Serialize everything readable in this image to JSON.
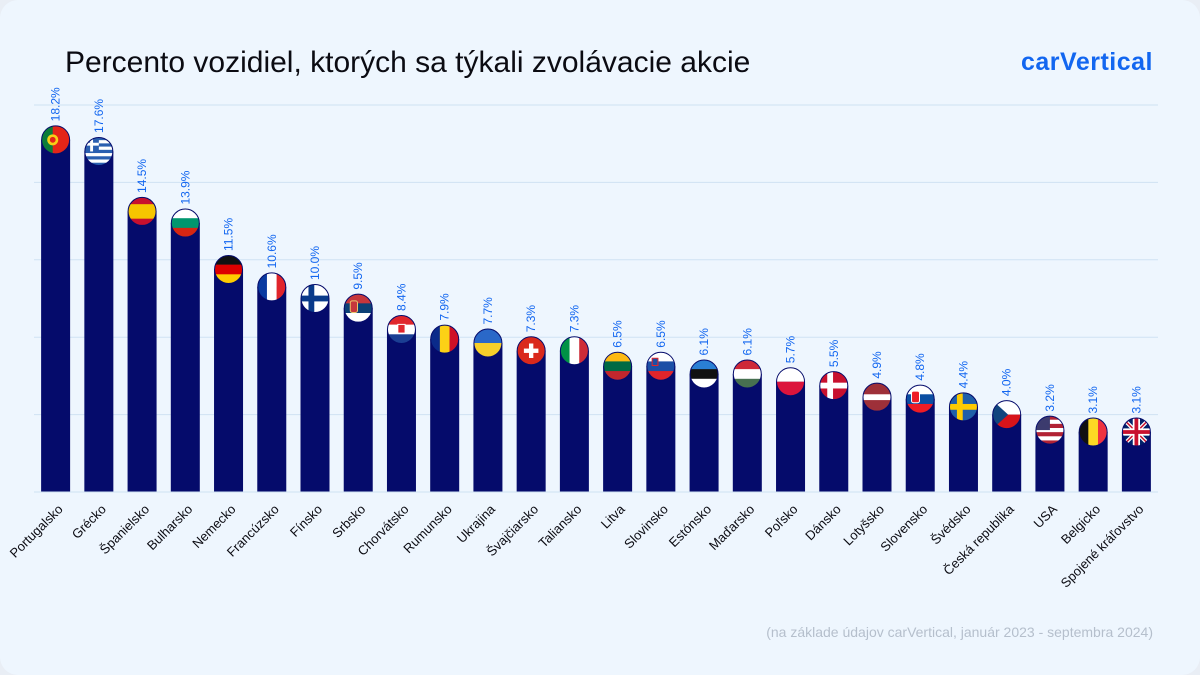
{
  "title": "Percento vozidiel, ktorých sa týkali zvolávacie akcie",
  "logo": "carVertical",
  "source_note": "(na základe údajov carVertical, január 2023 - septembra 2024)",
  "colors": {
    "bar": "#050b6b",
    "value_label": "#1266f0",
    "grid": "#cfe2f3",
    "logo": "#1266f0"
  },
  "chart_data": {
    "type": "bar",
    "title": "Percento vozidiel, ktorých sa týkali zvolávacie akcie",
    "xlabel": "",
    "ylabel": "",
    "ylim": [
      0,
      20
    ],
    "grid": true,
    "categories": [
      "Portugalsko",
      "Grécko",
      "Španielsko",
      "Bulharsko",
      "Nemecko",
      "Francúzsko",
      "Fínsko",
      "Srbsko",
      "Chorvátsko",
      "Rumunsko",
      "Ukrajina",
      "Švajčiarsko",
      "Taliansko",
      "Litva",
      "Slovinsko",
      "Estónsko",
      "Maďarsko",
      "Poľsko",
      "Dánsko",
      "Lotyšsko",
      "Slovensko",
      "Švédsko",
      "Česká republika",
      "USA",
      "Belgicko",
      "Spojené kráľovstvo"
    ],
    "values": [
      18.2,
      17.6,
      14.5,
      13.9,
      11.5,
      10.6,
      10.0,
      9.5,
      8.4,
      7.9,
      7.7,
      7.3,
      7.3,
      6.5,
      6.5,
      6.1,
      6.1,
      5.7,
      5.5,
      4.9,
      4.8,
      4.4,
      4.0,
      3.2,
      3.1,
      3.1
    ],
    "value_labels": [
      "18.2%",
      "17.6%",
      "14.5%",
      "13.9%",
      "11.5%",
      "10.6%",
      "10.0%",
      "9.5%",
      "8.4%",
      "7.9%",
      "7.7%",
      "7.3%",
      "7.3%",
      "6.5%",
      "6.5%",
      "6.1%",
      "6.1%",
      "5.7%",
      "5.5%",
      "4.9%",
      "4.8%",
      "4.4%",
      "4.0%",
      "3.2%",
      "3.1%",
      "3.1%"
    ],
    "flag_icons": [
      "portugal-flag-icon",
      "greece-flag-icon",
      "spain-flag-icon",
      "bulgaria-flag-icon",
      "germany-flag-icon",
      "france-flag-icon",
      "finland-flag-icon",
      "serbia-flag-icon",
      "croatia-flag-icon",
      "romania-flag-icon",
      "ukraine-flag-icon",
      "switzerland-flag-icon",
      "italy-flag-icon",
      "lithuania-flag-icon",
      "slovenia-flag-icon",
      "estonia-flag-icon",
      "hungary-flag-icon",
      "poland-flag-icon",
      "denmark-flag-icon",
      "latvia-flag-icon",
      "slovakia-flag-icon",
      "sweden-flag-icon",
      "czech-flag-icon",
      "usa-flag-icon",
      "belgium-flag-icon",
      "uk-flag-icon"
    ]
  }
}
